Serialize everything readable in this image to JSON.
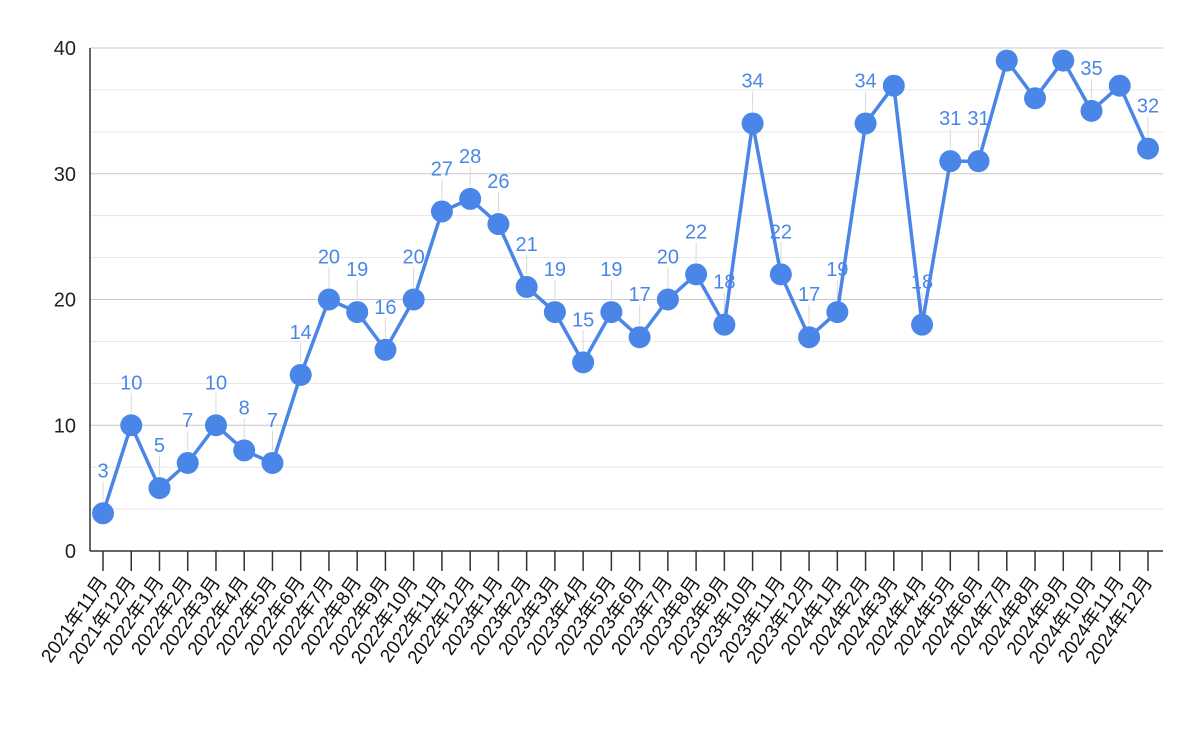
{
  "chart_data": {
    "type": "line",
    "title": "",
    "xlabel": "",
    "ylabel": "",
    "ylim": [
      0,
      40
    ],
    "yticks": [
      "0",
      "10",
      "20",
      "30",
      "40"
    ],
    "grid": true,
    "legend": "none",
    "line_color": "#4a86e8",
    "categories": [
      "2021年11月",
      "2021年12月",
      "2022年1月",
      "2022年2月",
      "2022年3月",
      "2022年4月",
      "2022年5月",
      "2022年6月",
      "2022年7月",
      "2022年8月",
      "2022年9月",
      "2022年10月",
      "2022年11月",
      "2022年12月",
      "2023年1月",
      "2023年2月",
      "2023年3月",
      "2023年4月",
      "2023年5月",
      "2023年6月",
      "2023年7月",
      "2023年8月",
      "2023年9月",
      "2023年10月",
      "2023年11月",
      "2023年12月",
      "2024年1月",
      "2024年2月",
      "2024年3月",
      "2024年4月",
      "2024年5月",
      "2024年6月",
      "2024年7月",
      "2024年8月",
      "2024年9月",
      "2024年10月",
      "2024年11月",
      "2024年12月"
    ],
    "values": [
      3,
      10,
      5,
      7,
      10,
      8,
      7,
      14,
      20,
      19,
      16,
      20,
      27,
      28,
      26,
      21,
      19,
      15,
      19,
      17,
      20,
      22,
      18,
      34,
      22,
      17,
      19,
      34,
      37,
      18,
      31,
      31,
      39,
      36,
      39,
      35,
      37,
      32
    ],
    "data_labels": [
      "3",
      "10",
      "5",
      "7",
      "10",
      "8",
      "7",
      "14",
      "20",
      "19",
      "16",
      "20",
      "27",
      "28",
      "26",
      "21",
      "19",
      "15",
      "19",
      "17",
      "20",
      "22",
      "18",
      "34",
      "22",
      "17",
      "19",
      "34",
      "",
      "18",
      "31",
      "31",
      "",
      "",
      "",
      "35",
      "",
      "32"
    ]
  }
}
